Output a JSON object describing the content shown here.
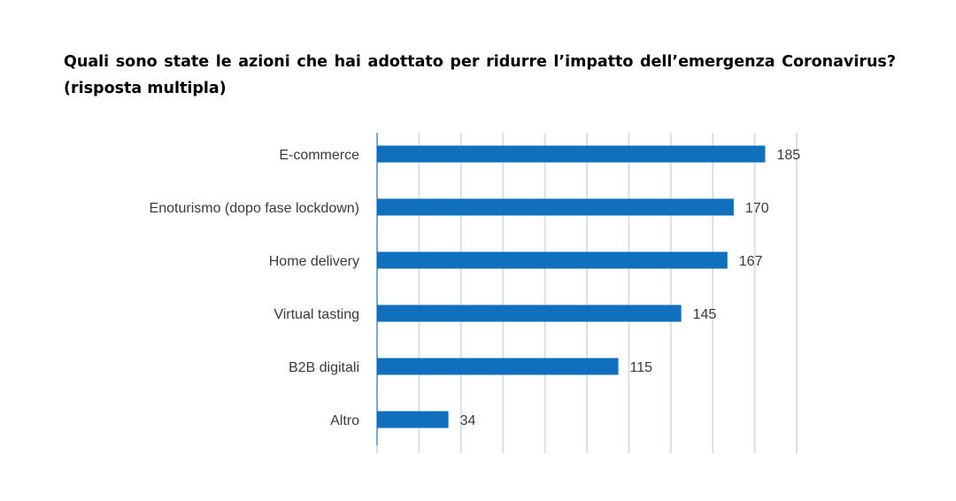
{
  "title": {
    "line1": "Quali sono state le azioni che hai adottato per ridurre l’impatto dell’emergenza Coronavirus?",
    "line2": "(risposta multipla)"
  },
  "chart_data": {
    "type": "bar",
    "orientation": "horizontal",
    "categories": [
      "E-commerce",
      "Enoturismo (dopo fase lockdown)",
      "Home delivery",
      "Virtual tasting",
      "B2B digitali",
      "Altro"
    ],
    "values": [
      185,
      170,
      167,
      145,
      115,
      34
    ],
    "xlim": [
      0,
      200
    ],
    "grid": true,
    "bar_color": "#1070BE",
    "grid_color": "#D9DFE7",
    "text_color": "#3a3a3a"
  }
}
